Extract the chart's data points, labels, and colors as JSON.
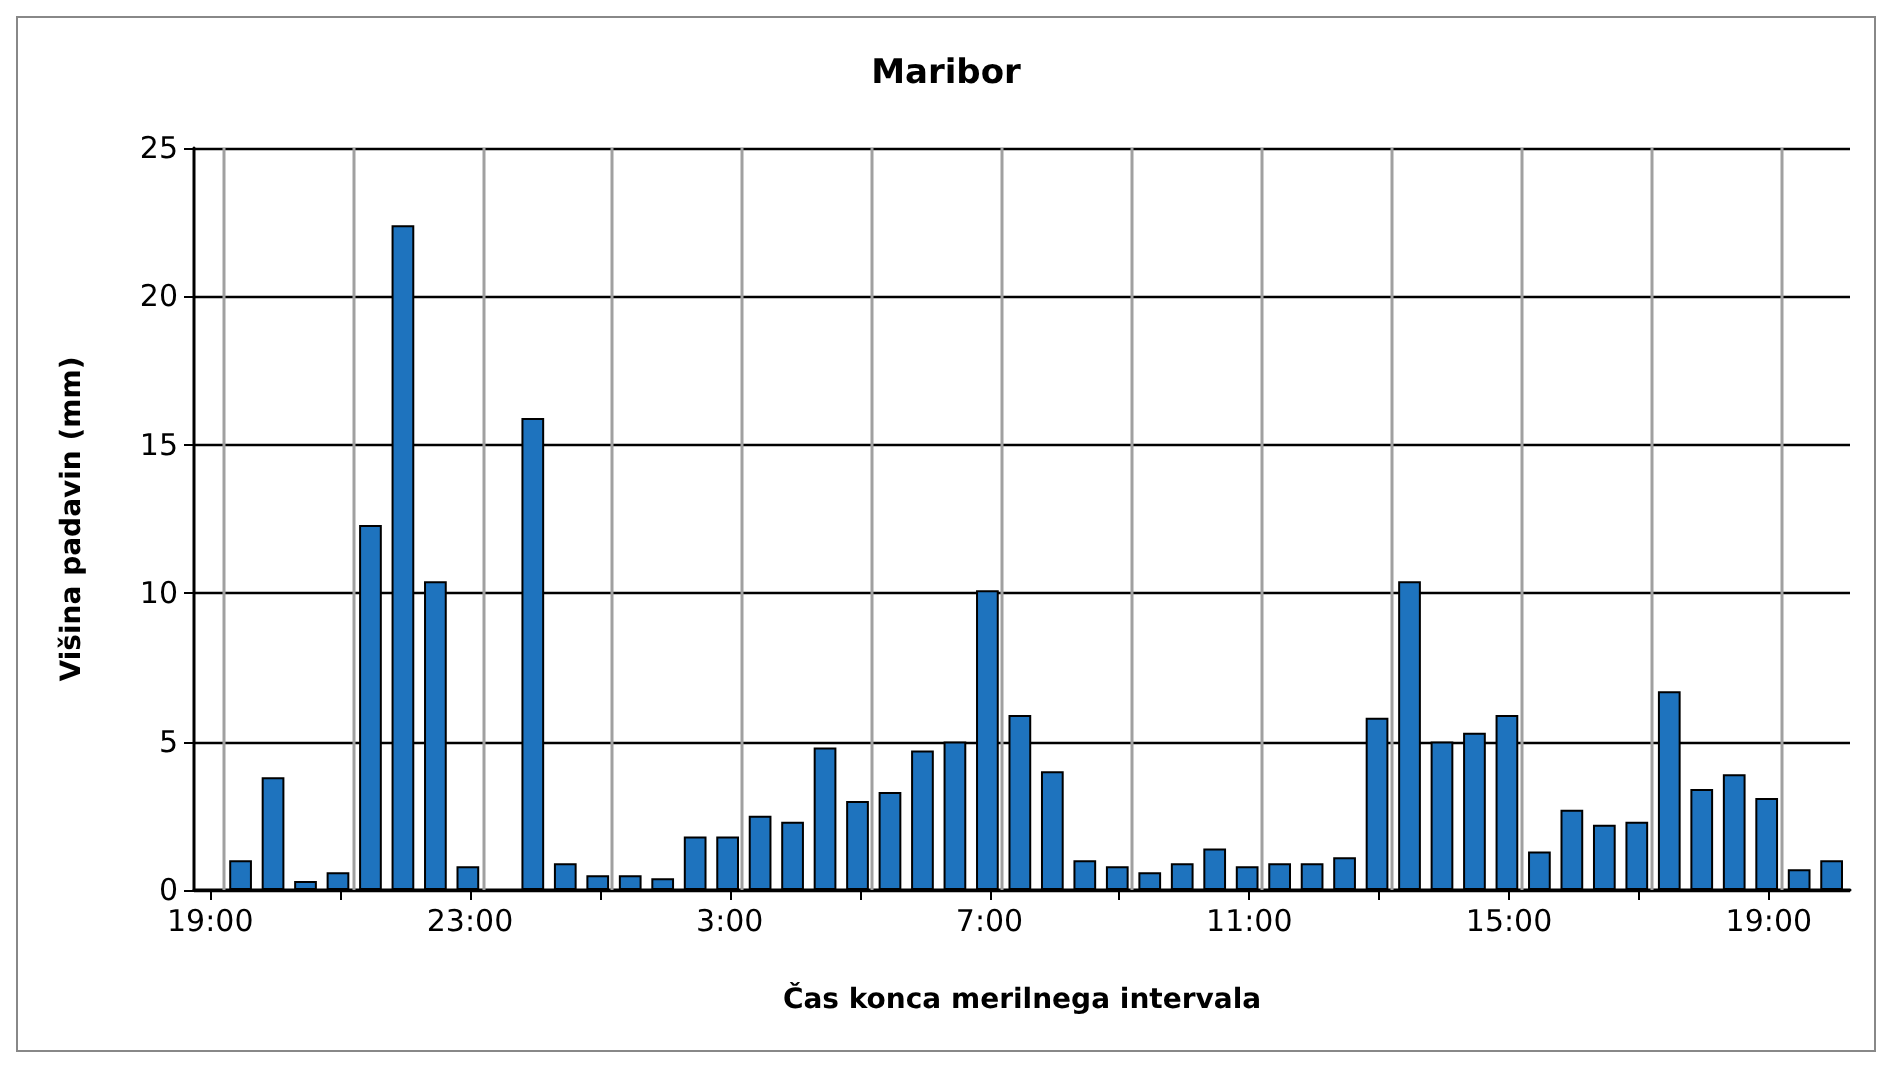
{
  "chart_data": {
    "type": "bar",
    "title": "Maribor",
    "xlabel": "Čas konca merilnega intervala",
    "ylabel": "Višina padavin (mm)",
    "categories": [
      "19:00",
      null,
      null,
      null,
      null,
      null,
      null,
      null,
      "23:00",
      null,
      null,
      null,
      null,
      null,
      null,
      null,
      "3:00",
      null,
      null,
      null,
      null,
      null,
      null,
      null,
      "7:00",
      null,
      null,
      null,
      null,
      null,
      null,
      null,
      "11:00",
      null,
      null,
      null,
      null,
      null,
      null,
      null,
      "15:00",
      null,
      null,
      null,
      null,
      null,
      null,
      null,
      "19:00",
      null,
      null
    ],
    "values": [
      null,
      1.0,
      3.8,
      0.3,
      0.6,
      12.3,
      22.4,
      10.4,
      0.8,
      null,
      15.9,
      0.9,
      0.5,
      0.5,
      0.4,
      1.8,
      1.8,
      2.5,
      2.3,
      4.8,
      3.0,
      3.3,
      4.7,
      5.0,
      10.1,
      5.9,
      4.0,
      1.0,
      0.8,
      0.6,
      0.9,
      1.4,
      0.8,
      0.9,
      0.9,
      1.1,
      5.8,
      10.4,
      5.0,
      5.3,
      5.9,
      1.3,
      2.7,
      2.2,
      2.3,
      6.7,
      3.4,
      3.9,
      3.1,
      0.7,
      1.0
    ],
    "color": "#1e73be",
    "ylim": [
      0,
      25
    ],
    "yticks": [
      0,
      5,
      10,
      15,
      20,
      25
    ],
    "grid": true
  }
}
